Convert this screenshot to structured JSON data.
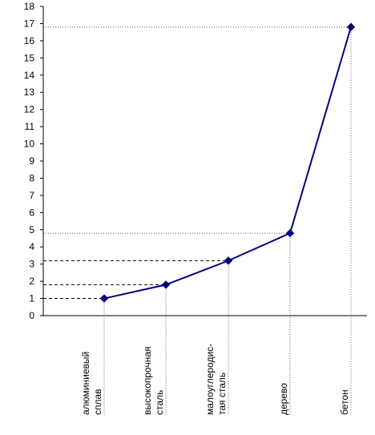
{
  "chart_data": {
    "type": "line",
    "categories": [
      [
        "алюминиевый",
        "сплав"
      ],
      [
        "высокопрочная",
        "сталь"
      ],
      [
        "малоуглеродис-",
        "тая сталь"
      ],
      [
        "дерево"
      ],
      [
        "бетон"
      ]
    ],
    "values": [
      1.0,
      1.8,
      3.2,
      4.8,
      16.8
    ],
    "y_ticks": [
      0,
      1,
      2,
      3,
      4,
      5,
      6,
      7,
      8,
      9,
      10,
      11,
      12,
      13,
      14,
      15,
      16,
      17,
      18
    ],
    "ylim": [
      0,
      18
    ],
    "grid": false,
    "legend": "none",
    "title": "",
    "xlabel": "",
    "ylabel": "",
    "colors": {
      "line": "#000080",
      "marker": "#000080",
      "axis": "#000000",
      "guide_dashed": "#000000",
      "guide_dotted": "#555555"
    }
  }
}
